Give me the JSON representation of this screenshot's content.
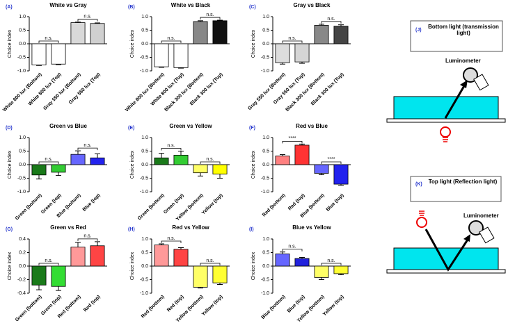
{
  "chart_data": [
    {
      "type": "bar",
      "label": "(A)",
      "title": "White vs Gray",
      "ylabel": "Choice index",
      "categories": [
        "White 800 lux (Bottom)",
        "White 800 lux (Top)",
        "Gray 550 lux (Bottom)",
        "Gray 550 lux (Top)"
      ],
      "values": [
        -0.78,
        -0.75,
        0.78,
        0.75
      ],
      "errors": [
        0.02,
        0.02,
        0.02,
        0.02
      ],
      "colors": [
        "#ffffff",
        "#ffffff",
        "#d9d9d9",
        "#d0d0d0"
      ],
      "annotations": [
        "n.s.",
        "n.s."
      ],
      "ylim": [
        -1,
        1
      ],
      "yticks": [
        {
          "value": -1,
          "label": "-1.0"
        },
        {
          "value": -0.5,
          "label": "-0.5"
        },
        {
          "value": 0,
          "label": "0.0"
        },
        {
          "value": 0.5,
          "label": "0.5"
        },
        {
          "value": 1,
          "label": "1.0"
        }
      ]
    },
    {
      "type": "bar",
      "label": "(B)",
      "title": "White vs Black",
      "ylabel": "Choice index",
      "categories": [
        "White 800 lux (Bottom)",
        "White 800 lux (Top)",
        "Black 300 lux (Bottom)",
        "Black 300 lux (Top)"
      ],
      "values": [
        -0.85,
        -0.88,
        0.82,
        0.85
      ],
      "errors": [
        0.02,
        0.02,
        0.03,
        0.02
      ],
      "colors": [
        "#ffffff",
        "#ffffff",
        "#888888",
        "#111111"
      ],
      "annotations": [
        "n.s.",
        "n.s."
      ],
      "ylim": [
        -1,
        1
      ],
      "yticks": [
        {
          "value": -1,
          "label": "-1.0"
        },
        {
          "value": -0.5,
          "label": "-0.5"
        },
        {
          "value": 0,
          "label": "0.0"
        },
        {
          "value": 0.5,
          "label": "0.5"
        },
        {
          "value": 1,
          "label": "1.0"
        }
      ]
    },
    {
      "type": "bar",
      "label": "(C)",
      "title": "Gray vs Black",
      "ylabel": "Choice index",
      "categories": [
        "Gray 550 lux (Bottom)",
        "Gray 550 lux (Top)",
        "Black 300 lux (Bottom)",
        "Black 300 lux (Top)"
      ],
      "values": [
        -0.7,
        -0.67,
        0.68,
        0.65
      ],
      "errors": [
        0.05,
        0.05,
        0.04,
        0.05
      ],
      "colors": [
        "#dddddd",
        "#d5d5d5",
        "#888888",
        "#444444"
      ],
      "annotations": [
        "n.s.",
        "n.s."
      ],
      "ylim": [
        -1,
        1
      ],
      "yticks": [
        {
          "value": -1,
          "label": "-1.0"
        },
        {
          "value": -0.5,
          "label": "-0.5"
        },
        {
          "value": 0,
          "label": "0.0"
        },
        {
          "value": 0.5,
          "label": "0.5"
        },
        {
          "value": 1,
          "label": "1.0"
        }
      ]
    },
    {
      "type": "bar",
      "label": "(D)",
      "title": "Green vs Blue",
      "ylabel": "Choice index",
      "categories": [
        "Green (bottom)",
        "Green (top)",
        "Blue (bottom)",
        "Blue (top)"
      ],
      "values": [
        -0.38,
        -0.28,
        0.38,
        0.25
      ],
      "errors": [
        0.15,
        0.12,
        0.13,
        0.15
      ],
      "colors": [
        "#1a7a1a",
        "#33cc33",
        "#6666ff",
        "#2222ee"
      ],
      "annotations": [
        "n.s.",
        "n.s."
      ],
      "ylim": [
        -1,
        1
      ],
      "yticks": [
        {
          "value": -1,
          "label": "-1.0"
        },
        {
          "value": -0.5,
          "label": "-0.5"
        },
        {
          "value": 0,
          "label": "0.0"
        },
        {
          "value": 0.5,
          "label": "0.5"
        },
        {
          "value": 1,
          "label": "1.0"
        }
      ]
    },
    {
      "type": "bar",
      "label": "(E)",
      "title": "Green vs Yellow",
      "ylabel": "Choice index",
      "categories": [
        "Green (bottom)",
        "Green (top)",
        "Yellow (bottom)",
        "Yellow (top)"
      ],
      "values": [
        0.25,
        0.35,
        -0.3,
        -0.35
      ],
      "errors": [
        0.17,
        0.15,
        0.12,
        0.15
      ],
      "colors": [
        "#1a7a1a",
        "#33cc33",
        "#ffff66",
        "#ffff00"
      ],
      "annotations": [
        "n.s.",
        "n.s."
      ],
      "ylim": [
        -1,
        1
      ],
      "yticks": [
        {
          "value": -1,
          "label": "-1.0"
        },
        {
          "value": -0.5,
          "label": "-0.5"
        },
        {
          "value": 0,
          "label": "0.0"
        },
        {
          "value": 0.5,
          "label": "0.5"
        },
        {
          "value": 1,
          "label": "1.0"
        }
      ]
    },
    {
      "type": "bar",
      "label": "(F)",
      "title": "Red vs Blue",
      "ylabel": "Choice index",
      "categories": [
        "Red (bottom)",
        "Red (top)",
        "Blue (bottom)",
        "Blue (top)"
      ],
      "values": [
        0.32,
        0.72,
        -0.32,
        -0.72
      ],
      "errors": [
        0.05,
        0.04,
        0.05,
        0.04
      ],
      "colors": [
        "#ff8080",
        "#ff3333",
        "#6666ff",
        "#2222ee"
      ],
      "annotations": [
        "****",
        "****"
      ],
      "ylim": [
        -1,
        1
      ],
      "yticks": [
        {
          "value": -1,
          "label": "-1.0"
        },
        {
          "value": -0.5,
          "label": "-0.5"
        },
        {
          "value": 0,
          "label": "0.0"
        },
        {
          "value": 0.5,
          "label": "0.5"
        },
        {
          "value": 1,
          "label": "1.0"
        }
      ]
    },
    {
      "type": "bar",
      "label": "(G)",
      "title": "Green vs Red",
      "ylabel": "Choice index",
      "categories": [
        "Green (bottom)",
        "Green (top)",
        "Red (bottom)",
        "Red (top)"
      ],
      "values": [
        -0.28,
        -0.3,
        0.28,
        0.3
      ],
      "errors": [
        0.07,
        0.06,
        0.07,
        0.06
      ],
      "colors": [
        "#1a7a1a",
        "#33dd33",
        "#ff9999",
        "#ff4444"
      ],
      "annotations": [
        "n.s.",
        "n.s."
      ],
      "ylim": [
        -0.4,
        0.4
      ],
      "yticks": [
        {
          "value": -0.4,
          "label": "-0.4"
        },
        {
          "value": -0.2,
          "label": "-0.2"
        },
        {
          "value": 0,
          "label": "0.0"
        },
        {
          "value": 0.2,
          "label": "0.2"
        },
        {
          "value": 0.4,
          "label": "0.4"
        }
      ]
    },
    {
      "type": "bar",
      "label": "(H)",
      "title": "Red vs Yellow",
      "ylabel": "Choice index",
      "categories": [
        "Red (bottom)",
        "Red (top)",
        "Yellow (bottom)",
        "Yellow (top)"
      ],
      "values": [
        0.78,
        0.62,
        -0.78,
        -0.62
      ],
      "errors": [
        0.04,
        0.06,
        0.03,
        0.06
      ],
      "colors": [
        "#ff9999",
        "#ff4444",
        "#ffff66",
        "#ffff33"
      ],
      "annotations": [
        "n.s.",
        "n.s."
      ],
      "ylim": [
        -1,
        1
      ],
      "yticks": [
        {
          "value": -1,
          "label": "-1.0"
        },
        {
          "value": -0.5,
          "label": "-0.5"
        },
        {
          "value": 0,
          "label": "0.0"
        },
        {
          "value": 0.5,
          "label": "0.5"
        },
        {
          "value": 1,
          "label": "1.0"
        }
      ]
    },
    {
      "type": "bar",
      "label": "(I)",
      "title": "Blue vs Yellow",
      "ylabel": "Choice index",
      "categories": [
        "Blue (bottom)",
        "Blue (top)",
        "Yellow (bottom)",
        "Yellow (top)"
      ],
      "values": [
        0.45,
        0.28,
        -0.42,
        -0.28
      ],
      "errors": [
        0.07,
        0.04,
        0.08,
        0.04
      ],
      "colors": [
        "#6666ff",
        "#2222dd",
        "#ffff66",
        "#ffff33"
      ],
      "annotations": [
        "n.s.",
        "n.s."
      ],
      "ylim": [
        -1,
        1
      ],
      "yticks": [
        {
          "value": -1,
          "label": "-1.0"
        },
        {
          "value": -0.5,
          "label": "-0.5"
        },
        {
          "value": 0,
          "label": "0.0"
        },
        {
          "value": 0.5,
          "label": "0.5"
        },
        {
          "value": 1,
          "label": "1.0"
        }
      ]
    }
  ],
  "diagrams": [
    {
      "label": "(J)",
      "title": "Bottom light (transmission light)",
      "device": "Luminometer"
    },
    {
      "label": "(K)",
      "title": "Top light (Reflection light)",
      "device": "Luminometer"
    }
  ]
}
